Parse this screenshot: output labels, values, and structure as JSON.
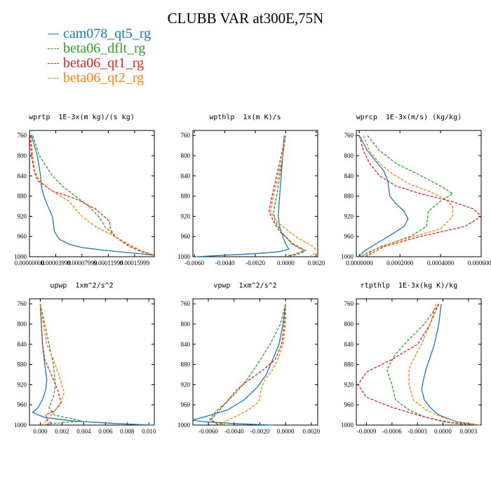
{
  "figure": {
    "title": "CLUBB VAR at300E,75N"
  },
  "legend": [
    {
      "name": "cam078_qt5_rg",
      "color": "#1f77b4",
      "dash": false
    },
    {
      "name": "beta06_dflt_rg",
      "color": "#2ca02c",
      "dash": true
    },
    {
      "name": "beta06_qt1_rg",
      "color": "#d62728",
      "dash": true
    },
    {
      "name": "beta06_qt2_rg",
      "color": "#ff7f0e",
      "dash": true
    }
  ],
  "chart_data": [
    {
      "type": "line",
      "title": "wprtp  1E-3x(m kg)/(s kg)",
      "xlim": [
        0,
        0.00019
      ],
      "ylim": [
        1000,
        750
      ],
      "xticks": [
        0,
        4e-05,
        8e-05,
        0.00012,
        0.00016
      ],
      "xtick_labels": [
        "0.00000000",
        "0.00003999",
        "0.00007999",
        "0.00011999",
        "0.00015999"
      ],
      "yticks": [
        760,
        800,
        840,
        880,
        920,
        960,
        1000
      ],
      "series": [
        {
          "name": "cam078_qt5_rg",
          "x": [
            3e-06,
            1.2e-05,
            1.7e-05,
            1.8e-05,
            2.2e-05,
            2.8e-05,
            3.5e-05,
            3.8e-05,
            4.5e-05,
            6e-05,
            8e-05,
            0.00012,
            0.00016,
            0.00019
          ],
          "y": [
            760,
            800,
            840,
            860,
            880,
            900,
            920,
            950,
            965,
            975,
            982,
            988,
            993,
            997
          ]
        },
        {
          "name": "beta06_dflt_rg",
          "x": [
            5e-06,
            1.5e-05,
            3.5e-05,
            5e-05,
            7e-05,
            9e-05,
            0.000105,
            0.000115,
            0.00013,
            0.00015,
            0.00017,
            0.00019
          ],
          "y": [
            760,
            800,
            840,
            860,
            880,
            900,
            920,
            940,
            960,
            975,
            988,
            997
          ]
        },
        {
          "name": "beta06_qt1_rg",
          "x": [
            1e-06,
            3e-06,
            8e-06,
            1.3e-05,
            3.5e-05,
            7e-05,
            0.0001,
            0.000122,
            0.000123,
            0.00013,
            0.00015,
            0.00017,
            0.00019
          ],
          "y": [
            760,
            800,
            835,
            850,
            870,
            885,
            905,
            930,
            945,
            960,
            978,
            990,
            997
          ]
        },
        {
          "name": "beta06_qt2_rg",
          "x": [
            2e-06,
            5e-06,
            8e-06,
            1.5e-05,
            3.5e-05,
            6e-05,
            8e-05,
            0.0001,
            0.00013,
            0.00015,
            0.00017,
            0.00019
          ],
          "y": [
            760,
            800,
            830,
            850,
            870,
            890,
            920,
            940,
            960,
            975,
            988,
            997
          ]
        }
      ]
    },
    {
      "type": "line",
      "title": "wpthlp  1x(m K)/s",
      "xlim": [
        -0.0061,
        0.0021
      ],
      "ylim": [
        1000,
        750
      ],
      "xticks": [
        -0.006,
        -0.004,
        -0.002,
        0.0,
        0.002
      ],
      "xtick_labels": [
        "-0.0060",
        "-0.0040",
        "-0.0020",
        "0.0000",
        "0.0020"
      ],
      "yticks": [
        760,
        800,
        840,
        880,
        920,
        960,
        1000
      ],
      "series": [
        {
          "name": "cam078_qt5_rg",
          "x": [
            -0.0001,
            -0.0002,
            -0.0003,
            -0.0004,
            -0.0005,
            -0.0004,
            -0.0002,
            0.0,
            0.0002,
            -0.0004,
            -0.002,
            -0.004,
            -0.0059
          ],
          "y": [
            760,
            800,
            840,
            880,
            920,
            940,
            960,
            975,
            985,
            990,
            994,
            997,
            1000
          ]
        },
        {
          "name": "beta06_dflt_rg",
          "x": [
            0.0,
            -0.0002,
            -0.0004,
            -0.0006,
            -0.0008,
            -0.0007,
            -0.0003,
            0.0004,
            0.0012,
            0.0006,
            -0.0002
          ],
          "y": [
            760,
            800,
            840,
            880,
            910,
            930,
            950,
            975,
            988,
            995,
            1000
          ]
        },
        {
          "name": "beta06_qt1_rg",
          "x": [
            0.0,
            -0.0003,
            -0.0006,
            -0.0009,
            -0.0011,
            -0.0008,
            -0.0004,
            0.0005,
            0.0013,
            0.0008,
            0.0
          ],
          "y": [
            760,
            800,
            840,
            880,
            910,
            930,
            950,
            975,
            988,
            995,
            1000
          ]
        },
        {
          "name": "beta06_qt2_rg",
          "x": [
            0.0,
            -0.0002,
            -0.0005,
            -0.0008,
            -0.001,
            -0.0006,
            0.0,
            0.0009,
            0.0018,
            0.0021,
            0.0016
          ],
          "y": [
            760,
            800,
            840,
            880,
            910,
            930,
            945,
            965,
            980,
            990,
            1000
          ]
        }
      ]
    },
    {
      "type": "line",
      "title": "wprcp  1E-3x(m/s) (kg/kg)",
      "xlim": [
        -1.5e-05,
        0.0006
      ],
      "ylim": [
        1000,
        750
      ],
      "xticks": [
        0.0,
        0.0002,
        0.0004,
        0.0006
      ],
      "xtick_labels": [
        "0.0000000",
        "0.0002000",
        "0.0004000",
        "0.0006000"
      ],
      "yticks": [
        760,
        800,
        840,
        880,
        920,
        960,
        1000
      ],
      "series": [
        {
          "name": "cam078_qt5_rg",
          "x": [
            0.0,
            4e-05,
            8e-05,
            0.00012,
            0.00014,
            0.00015,
            0.00018,
            0.00022,
            0.00024,
            0.00022,
            0.00015,
            8e-05,
            2e-05,
            0.0
          ],
          "y": [
            760,
            790,
            810,
            830,
            850,
            880,
            895,
            910,
            925,
            940,
            958,
            975,
            990,
            1000
          ]
        },
        {
          "name": "beta06_dflt_rg",
          "x": [
            4e-05,
            0.0001,
            0.00018,
            0.00028,
            0.0004,
            0.00046,
            0.0004,
            0.00034,
            0.00033,
            0.00025,
            0.00012,
            4e-05,
            1e-05
          ],
          "y": [
            760,
            790,
            815,
            835,
            860,
            875,
            890,
            910,
            940,
            960,
            978,
            992,
            1000
          ]
        },
        {
          "name": "beta06_qt1_rg",
          "x": [
            0.0,
            2e-05,
            5e-05,
            0.0001,
            0.00018,
            0.0003,
            0.00045,
            0.00056,
            0.0006,
            0.00052,
            0.0003,
            0.00012,
            3e-05
          ],
          "y": [
            760,
            790,
            815,
            840,
            860,
            875,
            890,
            905,
            920,
            940,
            960,
            980,
            1000
          ]
        },
        {
          "name": "beta06_qt2_rg",
          "x": [
            2e-05,
            5e-05,
            0.0001,
            0.00016,
            0.00024,
            0.00034,
            0.00042,
            0.00046,
            0.00046,
            0.0004,
            0.00025,
            0.0001,
            2e-05
          ],
          "y": [
            760,
            790,
            815,
            835,
            855,
            870,
            885,
            900,
            920,
            945,
            962,
            980,
            1000
          ]
        }
      ]
    },
    {
      "type": "line",
      "title": "upwp  1xm^2/s^2",
      "xlim": [
        -0.001,
        0.0105
      ],
      "ylim": [
        1000,
        750
      ],
      "xticks": [
        0.0,
        0.002,
        0.004,
        0.006,
        0.008,
        0.01
      ],
      "xtick_labels": [
        "0.000",
        "0.002",
        "0.004",
        "0.006",
        "0.008",
        "0.010"
      ],
      "yticks": [
        760,
        800,
        840,
        880,
        920,
        960,
        1000
      ],
      "series": [
        {
          "name": "cam078_qt5_rg",
          "x": [
            0.0,
            0.0001,
            0.0002,
            0.0004,
            0.0006,
            0.0005,
            0.0002,
            -0.0002,
            -0.0007,
            0.0004,
            0.003,
            0.007,
            0.0102
          ],
          "y": [
            760,
            800,
            840,
            880,
            910,
            930,
            950,
            965,
            975,
            985,
            992,
            997,
            1000
          ]
        },
        {
          "name": "beta06_dflt_rg",
          "x": [
            0.0,
            0.0004,
            0.0008,
            0.0012,
            0.0014,
            0.0012,
            0.0008,
            0.0013,
            0.0038,
            0.0012,
            0.0003
          ],
          "y": [
            760,
            800,
            840,
            880,
            920,
            945,
            965,
            980,
            992,
            997,
            1000
          ]
        },
        {
          "name": "beta06_qt1_rg",
          "x": [
            0.0,
            0.0001,
            0.0002,
            0.0004,
            0.001,
            0.0016,
            0.0019,
            0.0014,
            0.0005,
            0.0006,
            0.001,
            0.0004
          ],
          "y": [
            760,
            800,
            840,
            870,
            900,
            930,
            955,
            970,
            980,
            990,
            996,
            1000
          ]
        },
        {
          "name": "beta06_qt2_rg",
          "x": [
            0.0,
            0.0003,
            0.0006,
            0.0012,
            0.0017,
            0.0022,
            0.0019,
            0.0013,
            0.0008,
            0.0004,
            0.0002
          ],
          "y": [
            760,
            800,
            840,
            870,
            900,
            935,
            958,
            972,
            985,
            995,
            1000
          ]
        }
      ]
    },
    {
      "type": "line",
      "title": "vpwp  1xm^2/s^2",
      "xlim": [
        -0.0072,
        0.0025
      ],
      "ylim": [
        1000,
        750
      ],
      "xticks": [
        -0.006,
        -0.004,
        -0.002,
        0.0,
        0.002
      ],
      "xtick_labels": [
        "-0.0060",
        "-0.0040",
        "-0.0020",
        "0.0000",
        "0.0020"
      ],
      "yticks": [
        760,
        800,
        840,
        880,
        920,
        960,
        1000
      ],
      "series": [
        {
          "name": "cam078_qt5_rg",
          "x": [
            0.0,
            -0.0002,
            -0.0005,
            -0.001,
            -0.0015,
            -0.0022,
            -0.0032,
            -0.0045,
            -0.0062,
            -0.0072,
            -0.0065,
            -0.004,
            -0.001
          ],
          "y": [
            760,
            800,
            840,
            870,
            900,
            925,
            950,
            970,
            983,
            990,
            993,
            997,
            1000
          ]
        },
        {
          "name": "beta06_dflt_rg",
          "x": [
            0.0,
            -0.0004,
            -0.0012,
            -0.0022,
            -0.003,
            -0.0038,
            -0.0046,
            -0.0055,
            -0.0059,
            -0.0052,
            -0.0046
          ],
          "y": [
            760,
            800,
            840,
            880,
            910,
            935,
            955,
            975,
            990,
            996,
            1000
          ]
        },
        {
          "name": "beta06_qt1_rg",
          "x": [
            0.0,
            -0.0001,
            -0.0003,
            -0.0008,
            -0.0017,
            -0.0028,
            -0.0038,
            -0.0046,
            -0.0054,
            -0.0058,
            -0.0052
          ],
          "y": [
            760,
            800,
            840,
            870,
            890,
            910,
            930,
            955,
            978,
            990,
            1000
          ]
        },
        {
          "name": "beta06_qt2_rg",
          "x": [
            0.0,
            0.0,
            -0.0002,
            -0.0006,
            -0.001,
            -0.0016,
            -0.0019,
            -0.0021,
            -0.0032,
            -0.0045,
            -0.0052
          ],
          "y": [
            760,
            800,
            840,
            870,
            890,
            910,
            930,
            955,
            975,
            990,
            1000
          ]
        }
      ]
    },
    {
      "type": "line",
      "title": "rtpthlp  1E-3x(kg K)/kg",
      "xlim": [
        -0.00102,
        0.00045
      ],
      "ylim": [
        1000,
        750
      ],
      "xticks": [
        -0.0009,
        -0.0006,
        -0.0003,
        0.0,
        0.0003
      ],
      "xtick_labels": [
        "-0.0009",
        "-0.0006",
        "-0.0003",
        "0.0000",
        "0.0003"
      ],
      "yticks": [
        760,
        800,
        840,
        880,
        920,
        960,
        1000
      ],
      "series": [
        {
          "name": "cam078_qt5_rg",
          "x": [
            -2e-05,
            -5e-05,
            -0.0001,
            -0.00016,
            -0.0002,
            -0.00023,
            -0.00025,
            -0.00022,
            -0.00015,
            -5e-05,
            0.00015,
            0.00043
          ],
          "y": [
            760,
            800,
            840,
            870,
            890,
            910,
            930,
            950,
            965,
            980,
            993,
            1000
          ]
        },
        {
          "name": "beta06_dflt_rg",
          "x": [
            -5e-05,
            -0.00022,
            -0.0004,
            -0.00056,
            -0.00066,
            -0.0006,
            -0.00056,
            -0.0004,
            -0.0002,
            0.0001,
            0.0004
          ],
          "y": [
            760,
            800,
            830,
            860,
            890,
            920,
            950,
            970,
            985,
            995,
            1000
          ]
        },
        {
          "name": "beta06_qt1_rg",
          "x": [
            -5e-05,
            -0.00015,
            -0.0003,
            -0.0006,
            -0.0009,
            -0.001,
            -0.0009,
            -0.0006,
            -0.0003,
            0.0,
            0.0003
          ],
          "y": [
            760,
            800,
            840,
            870,
            895,
            920,
            945,
            965,
            980,
            993,
            1000
          ]
        },
        {
          "name": "beta06_qt2_rg",
          "x": [
            -8e-05,
            -0.00015,
            -0.00025,
            -0.00035,
            -0.0004,
            -0.0004,
            -0.00035,
            -0.0002,
            0.0,
            0.0002,
            0.00043
          ],
          "y": [
            760,
            800,
            840,
            870,
            890,
            920,
            950,
            970,
            985,
            995,
            1000
          ]
        }
      ]
    }
  ]
}
